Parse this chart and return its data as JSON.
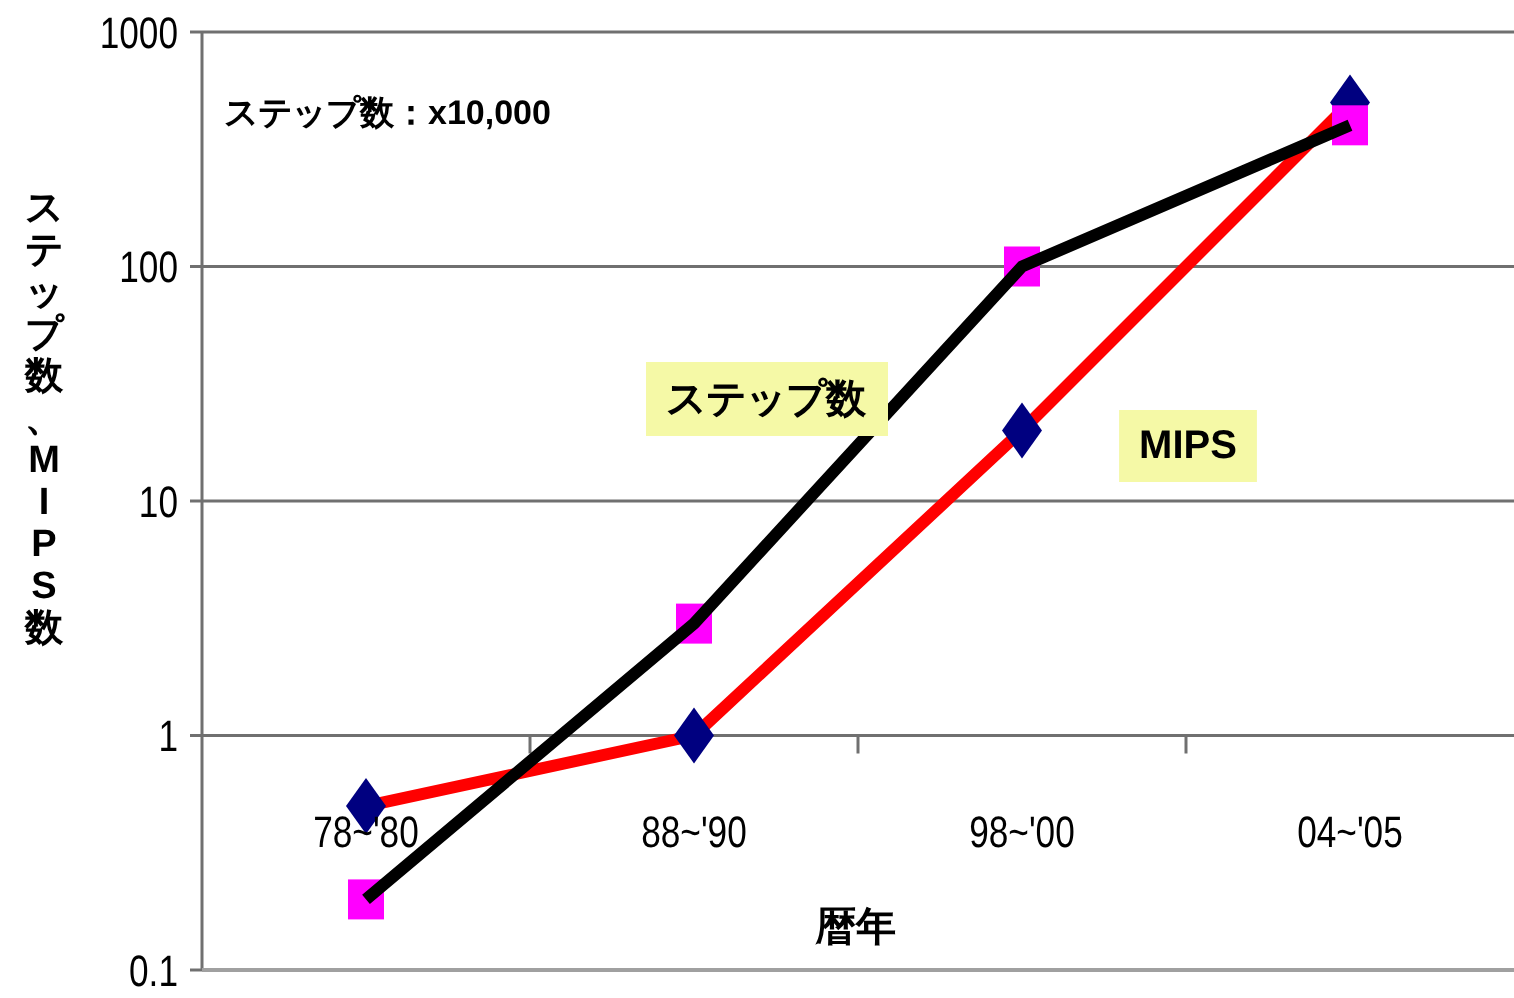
{
  "chart_data": {
    "type": "line",
    "xlabel": "暦年",
    "ylabel": "ステップ数、MIPS数",
    "annotations": [
      "ステップ数：x10,000"
    ],
    "categories": [
      "78~'80",
      "88~'90",
      "98~'00",
      "04~'05"
    ],
    "series": [
      {
        "name": "ステップ数",
        "color": "#000000",
        "colors": [
          "#ff00ff",
          "#ff00ff",
          "#ff00ff",
          "#ff00ff"
        ],
        "marker": "square",
        "values": [
          0.2,
          3,
          100,
          400
        ]
      },
      {
        "name": "MIPS",
        "color": "#ff0000",
        "colors": [
          "#000080",
          "#000080",
          "#000080",
          "#000080"
        ],
        "marker": "diamond",
        "values": [
          0.5,
          1,
          20,
          500
        ]
      }
    ],
    "log": "y",
    "ylim": [
      0.1,
      1000
    ],
    "yticks": [
      0.1,
      1,
      10,
      100,
      1000
    ],
    "grid": "y"
  }
}
